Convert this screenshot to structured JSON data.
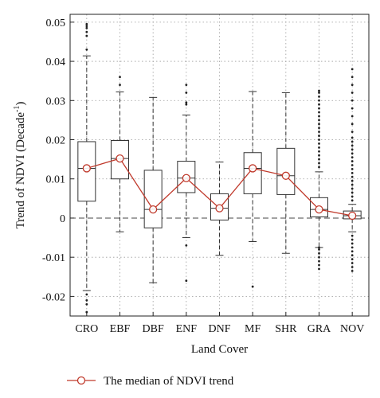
{
  "chart_data": {
    "type": "box",
    "xlabel": "Land Cover",
    "ylabel": "Trend of NDVI (Decade",
    "ylabel_sup": "-1",
    "ylabel_close": ")",
    "ylim": [
      -0.025,
      0.052
    ],
    "yticks": [
      -0.02,
      -0.01,
      0,
      0.01,
      0.02,
      0.03,
      0.04,
      0.05
    ],
    "ytick_labels": [
      "-0.02",
      "-0.01",
      "0",
      "0.01",
      "0.02",
      "0.03",
      "0.04",
      "0.05"
    ],
    "grid": "dotted",
    "zero_line": true,
    "categories": [
      "CRO",
      "EBF",
      "DBF",
      "ENF",
      "DNF",
      "MF",
      "SHR",
      "GRA",
      "NOV"
    ],
    "boxes": [
      {
        "whisker_low": -0.0185,
        "q1": 0.0043,
        "median": 0.0127,
        "q3": 0.0195,
        "whisker_high": 0.0414,
        "outliers": [
          -0.024,
          -0.022,
          -0.021,
          -0.0195,
          0.043,
          0.0465,
          0.0475,
          0.0485,
          0.049,
          0.0495
        ]
      },
      {
        "whisker_low": -0.0035,
        "q1": 0.01,
        "median": 0.0152,
        "q3": 0.0198,
        "whisker_high": 0.0322,
        "outliers": [
          0.034,
          0.036
        ]
      },
      {
        "whisker_low": -0.0165,
        "q1": -0.0025,
        "median": 0.0022,
        "q3": 0.0122,
        "whisker_high": 0.0308,
        "outliers": []
      },
      {
        "whisker_low": -0.005,
        "q1": 0.0065,
        "median": 0.0102,
        "q3": 0.0145,
        "whisker_high": 0.0263,
        "outliers": [
          -0.016,
          -0.007,
          0.029,
          0.0295,
          0.032,
          0.034
        ]
      },
      {
        "whisker_low": -0.0095,
        "q1": -0.0005,
        "median": 0.0025,
        "q3": 0.0062,
        "whisker_high": 0.0143,
        "outliers": []
      },
      {
        "whisker_low": -0.006,
        "q1": 0.0062,
        "median": 0.0127,
        "q3": 0.0167,
        "whisker_high": 0.0323,
        "outliers": [
          -0.0175
        ]
      },
      {
        "whisker_low": -0.009,
        "q1": 0.006,
        "median": 0.0108,
        "q3": 0.0178,
        "whisker_high": 0.032,
        "outliers": []
      },
      {
        "whisker_low": -0.0075,
        "q1": 0.0003,
        "median": 0.0022,
        "q3": 0.0052,
        "whisker_high": 0.0118,
        "outliers": [
          -0.013,
          -0.012,
          -0.011,
          -0.01,
          -0.009,
          -0.008,
          -0.0075,
          0.013,
          0.014,
          0.015,
          0.016,
          0.017,
          0.018,
          0.019,
          0.02,
          0.021,
          0.022,
          0.023,
          0.024,
          0.025,
          0.026,
          0.027,
          0.028,
          0.029,
          0.03,
          0.031,
          0.032,
          0.0325
        ]
      },
      {
        "whisker_low": -0.0035,
        "q1": -0.0002,
        "median": 0.0006,
        "q3": 0.0018,
        "whisker_high": 0.0035,
        "outliers": [
          -0.0135,
          -0.0125,
          -0.0115,
          -0.0105,
          -0.0095,
          -0.0085,
          -0.0075,
          -0.0065,
          -0.0055,
          -0.0045,
          0.0045,
          0.0055,
          0.0065,
          0.0075,
          0.0085,
          0.0095,
          0.0105,
          0.0115,
          0.0125,
          0.0135,
          0.0145,
          0.0155,
          0.0165,
          0.0175,
          0.0185,
          0.0195,
          0.0205,
          0.022,
          0.024,
          0.026,
          0.028,
          0.03,
          0.032,
          0.034,
          0.036,
          0.038
        ]
      }
    ],
    "series": [
      {
        "name": "The median of NDVI trend",
        "type": "line",
        "marker": "circle",
        "color": "#c0392b",
        "values": [
          0.0127,
          0.0152,
          0.0022,
          0.0102,
          0.0025,
          0.0127,
          0.0108,
          0.0022,
          0.0006
        ]
      }
    ],
    "legend": "bottom-left"
  },
  "colors": {
    "median_line": "#c0392b",
    "box": "#333333",
    "grid": "#888888"
  }
}
